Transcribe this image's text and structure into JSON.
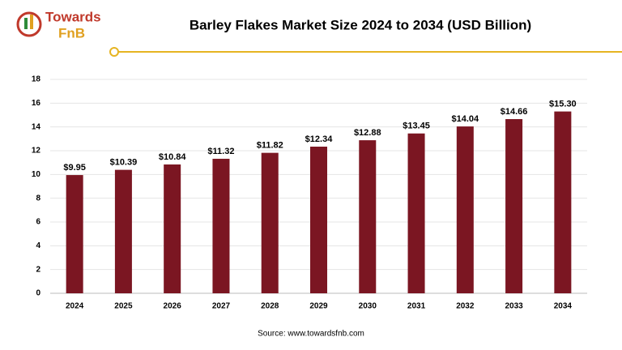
{
  "logo": {
    "line1": "Towards",
    "line2": "FnB"
  },
  "chart_data": {
    "type": "bar",
    "title": "Barley Flakes Market Size 2024 to 2034 (USD Billion)",
    "categories": [
      "2024",
      "2025",
      "2026",
      "2027",
      "2028",
      "2029",
      "2030",
      "2031",
      "2032",
      "2033",
      "2034"
    ],
    "values": [
      9.95,
      10.39,
      10.84,
      11.32,
      11.82,
      12.34,
      12.88,
      13.45,
      14.04,
      14.66,
      15.3
    ],
    "value_labels": [
      "$9.95",
      "$10.39",
      "$10.84",
      "$11.32",
      "$11.82",
      "$12.34",
      "$12.88",
      "$13.45",
      "$14.04",
      "$14.66",
      "$15.30"
    ],
    "color": "#7b1622",
    "ylim": [
      0,
      18
    ],
    "yticks": [
      0,
      2,
      4,
      6,
      8,
      10,
      12,
      14,
      16,
      18
    ],
    "grid": true,
    "source": "Source: www.towardsfnb.com"
  }
}
